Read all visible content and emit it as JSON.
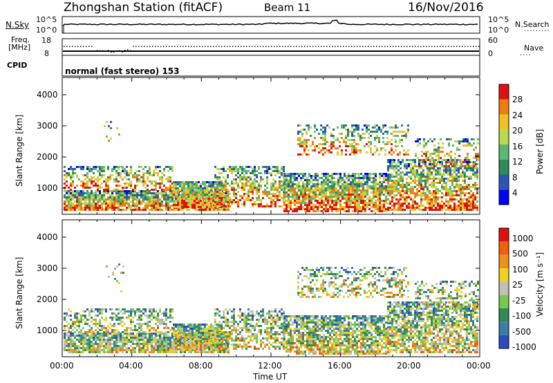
{
  "header": {
    "title": "Zhongshan Station (fitACF)",
    "beam": "Beam 11",
    "date": "16/Nov/2016"
  },
  "top_panels": {
    "nsky_label": "N.Sky",
    "nsky_ticks": [
      "10^5",
      "10^0"
    ],
    "nsearch_label": "N.Search",
    "nsearch_ticks": [
      "10^5",
      "10^0"
    ],
    "freq_label": "Freq.",
    "freq_unit": "[MHz]",
    "freq_ticks": [
      "18",
      "8"
    ],
    "nave_label": "Nave",
    "nave_ticks": [
      "60",
      "0"
    ],
    "cpid_label": "CPID",
    "cpid_text": "normal (fast stereo) 153"
  },
  "chart_data": [
    {
      "type": "heatmap",
      "name": "power",
      "ylabel": "Slant Range [km]",
      "xlabel": "",
      "y_ticks": [
        "4000",
        "3000",
        "2000",
        "1000"
      ],
      "ylim": [
        180,
        4500
      ],
      "xlim": [
        0,
        24
      ],
      "colorbar_label": "Power [dB]",
      "colorbar_ticks": [
        "28",
        "24",
        "20",
        "16",
        "12",
        "8",
        "4"
      ],
      "colors": [
        "#0000ff",
        "#2a56b8",
        "#2e8b57",
        "#5ab873",
        "#b8d850",
        "#f0c020",
        "#f07c10",
        "#e01010"
      ]
    },
    {
      "type": "heatmap",
      "name": "velocity",
      "ylabel": "Slant Range [km]",
      "xlabel": "Time UT",
      "y_ticks": [
        "4000",
        "3000",
        "2000",
        "1000"
      ],
      "x_ticks": [
        "00:00",
        "04:00",
        "08:00",
        "12:00",
        "16:00",
        "20:00",
        "00:00"
      ],
      "ylim": [
        180,
        4500
      ],
      "xlim": [
        0,
        24
      ],
      "colorbar_label": "Velocity [m s⁻¹]",
      "colorbar_ticks": [
        "1000",
        "500",
        "100",
        "25",
        "-25",
        "-100",
        "-500",
        "-1000"
      ],
      "colors": [
        "#2b4bc0",
        "#3a7fa8",
        "#2e8b57",
        "#78c850",
        "#c0c0b8",
        "#f0d020",
        "#f09018",
        "#f06010",
        "#e01010"
      ]
    }
  ]
}
